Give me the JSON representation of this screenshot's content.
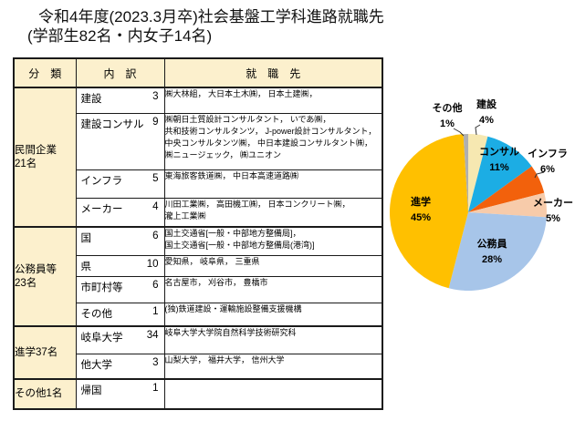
{
  "title": {
    "line1": "令和4年度(2023.3月卒)社会基盤工学科進路就職先",
    "line2": "(学部生82名・内女子14名)"
  },
  "table": {
    "headers": [
      "分　類",
      "内　訳",
      "就　職　先"
    ],
    "groups": [
      {
        "category_lines": [
          "民間企業",
          "21名"
        ],
        "rows": [
          {
            "label": "建設",
            "count": "3",
            "detail": "㈱大林組， 大日本土木㈱， 日本土建㈱，"
          },
          {
            "label": "建設コンサル",
            "count": "9",
            "detail": "㈱朝日土質設計コンサルタント， いであ㈱，\n共和技術コンサルタンツ， J-power設計コンサルタント，\n中央コンサルタンツ㈱， 中日本建設コンサルタント㈱，\n㈱ニュージェック， ㈱ユニオン"
          },
          {
            "label": "インフラ",
            "count": "5",
            "detail": "東海旅客鉄道㈱， 中日本高速道路㈱"
          },
          {
            "label": "メーカー",
            "count": "4",
            "detail": "川田工業㈱， 高田機工㈱， 日本コンクリート㈱，\n瀧上工業㈱"
          }
        ]
      },
      {
        "category_lines": [
          "公務員等",
          "23名"
        ],
        "rows": [
          {
            "label": "国",
            "count": "6",
            "detail": "国土交通省[一般・中部地方整備局]，\n国土交通省[一般・中部地方整備局(港湾)]"
          },
          {
            "label": "県",
            "count": "10",
            "detail": "愛知県， 岐阜県， 三重県"
          },
          {
            "label": "市町村等",
            "count": "6",
            "detail": "名古屋市， 刈谷市， 豊橋市"
          },
          {
            "label": "その他",
            "count": "1",
            "detail": "(独)鉄道建設・運輸施設整備支援機構"
          }
        ]
      },
      {
        "category_lines": [
          "進学37名"
        ],
        "rows": [
          {
            "label": "岐阜大学",
            "count": "34",
            "detail": "岐阜大学大学院自然科学技術研究科"
          },
          {
            "label": "他大学",
            "count": "3",
            "detail": "山梨大学， 福井大学， 信州大学"
          }
        ]
      },
      {
        "category_lines": [
          "その他1名"
        ],
        "rows": [
          {
            "label": "帰国",
            "count": "1",
            "detail": ""
          }
        ]
      }
    ]
  },
  "chart_data": {
    "type": "pie",
    "title": "",
    "start_angle_deg": -90,
    "direction": "clockwise",
    "unit": "%",
    "slices": [
      {
        "label": "建設",
        "value": 4,
        "pct_label": "4%",
        "color": "#F6E8B1",
        "label_position": "outside"
      },
      {
        "label": "コンサル",
        "value": 11,
        "pct_label": "11%",
        "color": "#1CADE4",
        "label_position": "inside"
      },
      {
        "label": "インフラ",
        "value": 6,
        "pct_label": "6%",
        "color": "#F2610C",
        "label_position": "outside"
      },
      {
        "label": "メーカー",
        "value": 5,
        "pct_label": "5%",
        "color": "#F7CBAA",
        "label_position": "outside"
      },
      {
        "label": "公務員",
        "value": 28,
        "pct_label": "28%",
        "color": "#A7C5E9",
        "label_position": "inside"
      },
      {
        "label": "進学",
        "value": 45,
        "pct_label": "45%",
        "color": "#FFC000",
        "label_position": "inside"
      },
      {
        "label": "その他",
        "value": 1,
        "pct_label": "1%",
        "color": "#AFAFAF",
        "label_position": "outside"
      }
    ]
  }
}
